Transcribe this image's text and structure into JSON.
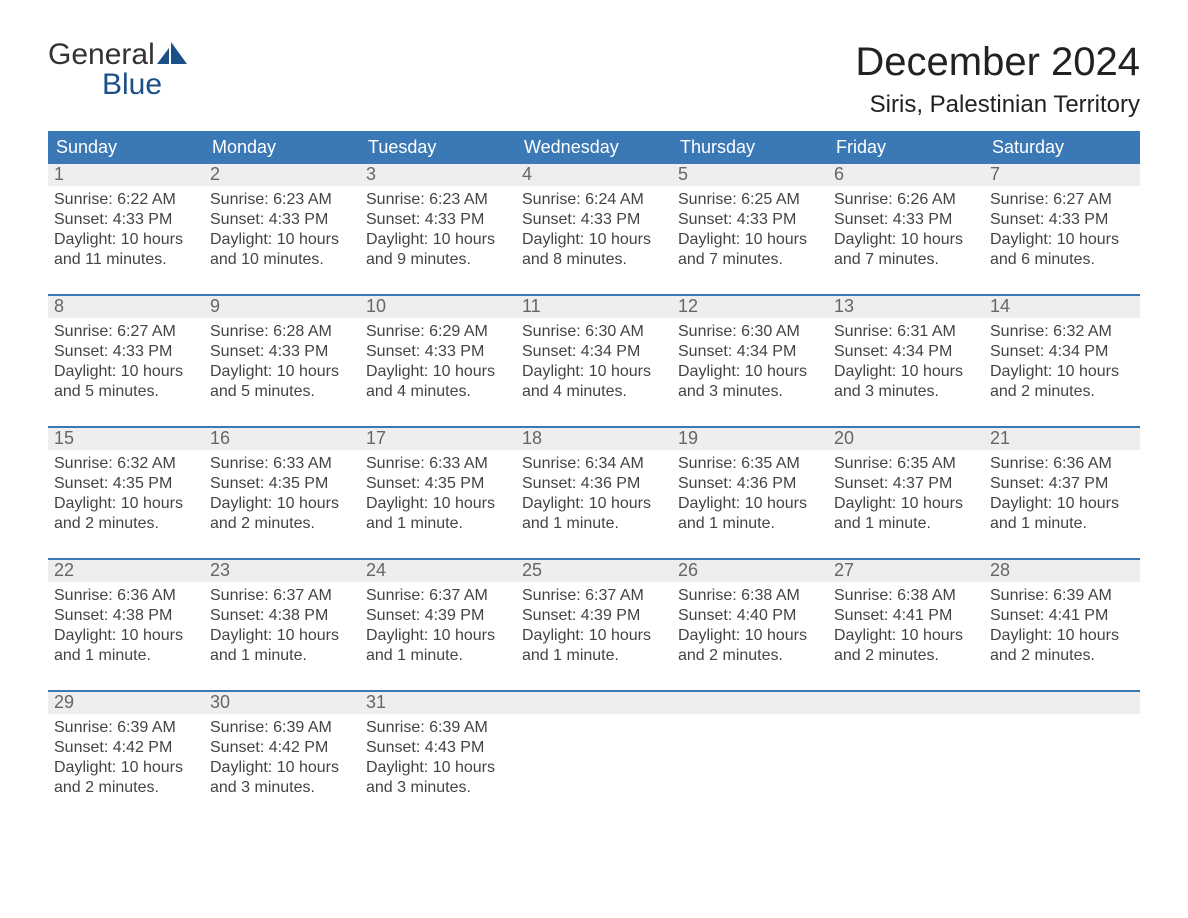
{
  "logo": {
    "line1": "General",
    "line2": "Blue"
  },
  "title": "December 2024",
  "subtitle": "Siris, Palestinian Territory",
  "colors": {
    "header_blue": "#3b78b6",
    "grey_bg": "#eeeeee",
    "text_dark": "#333333",
    "background": "#ffffff",
    "logo_navy": "#1b4f87"
  },
  "typography": {
    "title_fontsize": 40,
    "subtitle_fontsize": 24,
    "header_fontsize": 18,
    "daynum_fontsize": 18,
    "body_fontsize": 16,
    "font_family": "Arial"
  },
  "layout": {
    "weeks": 5,
    "cols": 7
  },
  "daysOfWeek": [
    "Sunday",
    "Monday",
    "Tuesday",
    "Wednesday",
    "Thursday",
    "Friday",
    "Saturday"
  ],
  "labels": {
    "sunrise": "Sunrise:",
    "sunset": "Sunset:",
    "daylight": "Daylight:"
  },
  "days": [
    {
      "n": 1,
      "sunrise": "6:22 AM",
      "sunset": "4:33 PM",
      "daylight": "10 hours and 11 minutes."
    },
    {
      "n": 2,
      "sunrise": "6:23 AM",
      "sunset": "4:33 PM",
      "daylight": "10 hours and 10 minutes."
    },
    {
      "n": 3,
      "sunrise": "6:23 AM",
      "sunset": "4:33 PM",
      "daylight": "10 hours and 9 minutes."
    },
    {
      "n": 4,
      "sunrise": "6:24 AM",
      "sunset": "4:33 PM",
      "daylight": "10 hours and 8 minutes."
    },
    {
      "n": 5,
      "sunrise": "6:25 AM",
      "sunset": "4:33 PM",
      "daylight": "10 hours and 7 minutes."
    },
    {
      "n": 6,
      "sunrise": "6:26 AM",
      "sunset": "4:33 PM",
      "daylight": "10 hours and 7 minutes."
    },
    {
      "n": 7,
      "sunrise": "6:27 AM",
      "sunset": "4:33 PM",
      "daylight": "10 hours and 6 minutes."
    },
    {
      "n": 8,
      "sunrise": "6:27 AM",
      "sunset": "4:33 PM",
      "daylight": "10 hours and 5 minutes."
    },
    {
      "n": 9,
      "sunrise": "6:28 AM",
      "sunset": "4:33 PM",
      "daylight": "10 hours and 5 minutes."
    },
    {
      "n": 10,
      "sunrise": "6:29 AM",
      "sunset": "4:33 PM",
      "daylight": "10 hours and 4 minutes."
    },
    {
      "n": 11,
      "sunrise": "6:30 AM",
      "sunset": "4:34 PM",
      "daylight": "10 hours and 4 minutes."
    },
    {
      "n": 12,
      "sunrise": "6:30 AM",
      "sunset": "4:34 PM",
      "daylight": "10 hours and 3 minutes."
    },
    {
      "n": 13,
      "sunrise": "6:31 AM",
      "sunset": "4:34 PM",
      "daylight": "10 hours and 3 minutes."
    },
    {
      "n": 14,
      "sunrise": "6:32 AM",
      "sunset": "4:34 PM",
      "daylight": "10 hours and 2 minutes."
    },
    {
      "n": 15,
      "sunrise": "6:32 AM",
      "sunset": "4:35 PM",
      "daylight": "10 hours and 2 minutes."
    },
    {
      "n": 16,
      "sunrise": "6:33 AM",
      "sunset": "4:35 PM",
      "daylight": "10 hours and 2 minutes."
    },
    {
      "n": 17,
      "sunrise": "6:33 AM",
      "sunset": "4:35 PM",
      "daylight": "10 hours and 1 minute."
    },
    {
      "n": 18,
      "sunrise": "6:34 AM",
      "sunset": "4:36 PM",
      "daylight": "10 hours and 1 minute."
    },
    {
      "n": 19,
      "sunrise": "6:35 AM",
      "sunset": "4:36 PM",
      "daylight": "10 hours and 1 minute."
    },
    {
      "n": 20,
      "sunrise": "6:35 AM",
      "sunset": "4:37 PM",
      "daylight": "10 hours and 1 minute."
    },
    {
      "n": 21,
      "sunrise": "6:36 AM",
      "sunset": "4:37 PM",
      "daylight": "10 hours and 1 minute."
    },
    {
      "n": 22,
      "sunrise": "6:36 AM",
      "sunset": "4:38 PM",
      "daylight": "10 hours and 1 minute."
    },
    {
      "n": 23,
      "sunrise": "6:37 AM",
      "sunset": "4:38 PM",
      "daylight": "10 hours and 1 minute."
    },
    {
      "n": 24,
      "sunrise": "6:37 AM",
      "sunset": "4:39 PM",
      "daylight": "10 hours and 1 minute."
    },
    {
      "n": 25,
      "sunrise": "6:37 AM",
      "sunset": "4:39 PM",
      "daylight": "10 hours and 1 minute."
    },
    {
      "n": 26,
      "sunrise": "6:38 AM",
      "sunset": "4:40 PM",
      "daylight": "10 hours and 2 minutes."
    },
    {
      "n": 27,
      "sunrise": "6:38 AM",
      "sunset": "4:41 PM",
      "daylight": "10 hours and 2 minutes."
    },
    {
      "n": 28,
      "sunrise": "6:39 AM",
      "sunset": "4:41 PM",
      "daylight": "10 hours and 2 minutes."
    },
    {
      "n": 29,
      "sunrise": "6:39 AM",
      "sunset": "4:42 PM",
      "daylight": "10 hours and 2 minutes."
    },
    {
      "n": 30,
      "sunrise": "6:39 AM",
      "sunset": "4:42 PM",
      "daylight": "10 hours and 3 minutes."
    },
    {
      "n": 31,
      "sunrise": "6:39 AM",
      "sunset": "4:43 PM",
      "daylight": "10 hours and 3 minutes."
    }
  ]
}
